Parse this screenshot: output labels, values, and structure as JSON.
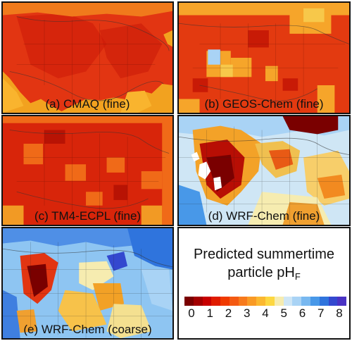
{
  "panels": {
    "a": {
      "label": "(a) CMAQ (fine)"
    },
    "b": {
      "label": "(b) GEOS-Chem (fine)"
    },
    "c": {
      "label": "(c) TM4-ECPL (fine)"
    },
    "d": {
      "label": "(d) WRF-Chem (fine)"
    },
    "e": {
      "label": "(e) WRF-Chem (coarse)"
    }
  },
  "legend": {
    "title_line1": "Predicted summertime",
    "title_line2": "particle pH",
    "title_subscript": "F",
    "ticks": [
      "0",
      "1",
      "2",
      "3",
      "4",
      "5",
      "6",
      "7",
      "8"
    ],
    "range": [
      0,
      8
    ],
    "colors": [
      "#7a0000",
      "#a30000",
      "#c80000",
      "#e01b00",
      "#f03a00",
      "#f45a12",
      "#f77a1c",
      "#f99a25",
      "#fbb830",
      "#fdd740",
      "#f6ecb0",
      "#cfe6f5",
      "#a9d3f5",
      "#78b8f0",
      "#4898e8",
      "#2f74dd",
      "#3348cf",
      "#4a33c4"
    ]
  }
}
